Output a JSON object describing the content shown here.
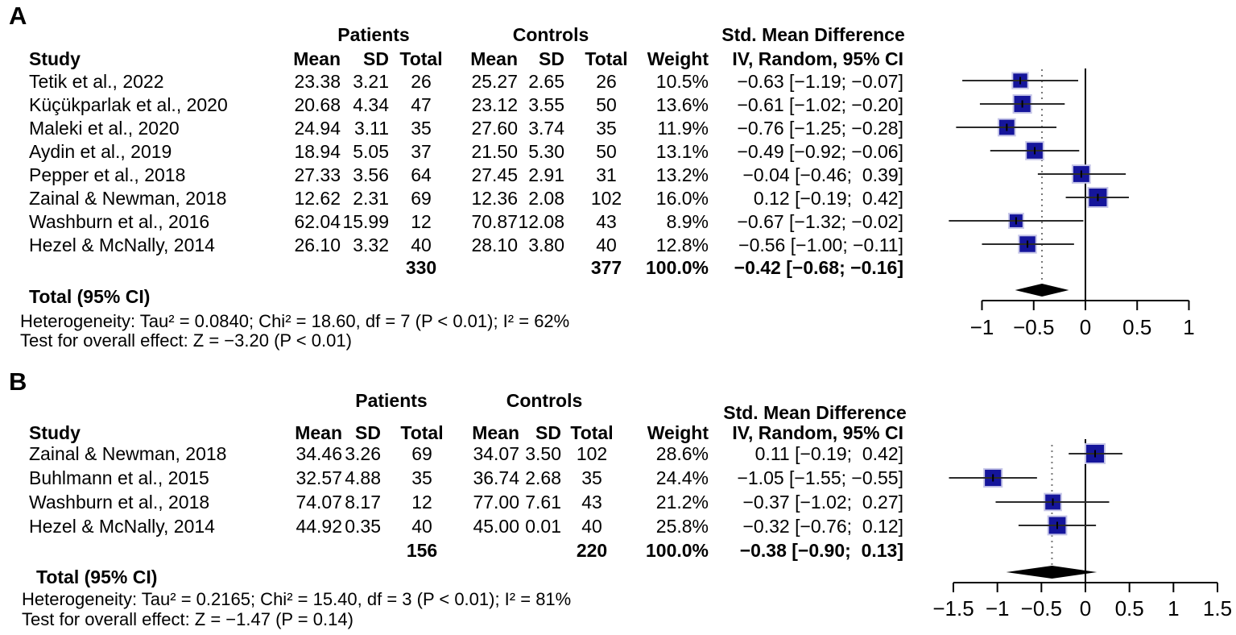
{
  "colors": {
    "background": "#ffffff",
    "text": "#000000",
    "marker_fill": "#15159b",
    "marker_stroke": "#c6c6e8",
    "ci_line": "#2b2b2b",
    "diamond": "#000000",
    "axis": "#000000",
    "pooled_dotted_line": "#777777"
  },
  "panels": [
    {
      "label": "A",
      "group_headers": {
        "patients": "Patients",
        "controls": "Controls",
        "smd": "Std. Mean Difference"
      },
      "column_headers": {
        "study": "Study",
        "mean": "Mean",
        "sd": "SD",
        "total": "Total",
        "weight": "Weight",
        "ci": "IV, Random, 95% CI"
      },
      "rows": [
        {
          "study": "Tetik et al., 2022",
          "p_mean": "23.38",
          "p_sd": "3.21",
          "p_total": "26",
          "c_mean": "25.27",
          "c_sd": "2.65",
          "c_total": "26",
          "weight": "10.5%",
          "smd": "−0.63 [−1.19; −0.07]"
        },
        {
          "study": "Küçükparlak et al., 2020",
          "p_mean": "20.68",
          "p_sd": "4.34",
          "p_total": "47",
          "c_mean": "23.12",
          "c_sd": "3.55",
          "c_total": "50",
          "weight": "13.6%",
          "smd": "−0.61 [−1.02; −0.20]"
        },
        {
          "study": "Maleki et al., 2020",
          "p_mean": "24.94",
          "p_sd": "3.11",
          "p_total": "35",
          "c_mean": "27.60",
          "c_sd": "3.74",
          "c_total": "35",
          "weight": "11.9%",
          "smd": "−0.76 [−1.25; −0.28]"
        },
        {
          "study": "Aydin et al., 2019",
          "p_mean": "18.94",
          "p_sd": "5.05",
          "p_total": "37",
          "c_mean": "21.50",
          "c_sd": "5.30",
          "c_total": "50",
          "weight": "13.1%",
          "smd": "−0.49 [−0.92; −0.06]"
        },
        {
          "study": "Pepper et al., 2018",
          "p_mean": "27.33",
          "p_sd": "3.56",
          "p_total": "64",
          "c_mean": "27.45",
          "c_sd": "2.91",
          "c_total": "31",
          "weight": "13.2%",
          "smd": "−0.04 [−0.46;  0.39]"
        },
        {
          "study": "Zainal & Newman, 2018",
          "p_mean": "12.62",
          "p_sd": "2.31",
          "p_total": "69",
          "c_mean": "12.36",
          "c_sd": "2.08",
          "c_total": "102",
          "weight": "16.0%",
          "smd": "0.12 [−0.19;  0.42]"
        },
        {
          "study": "Washburn et al., 2016",
          "p_mean": "62.04",
          "p_sd": "15.99",
          "p_total": "12",
          "c_mean": "70.87",
          "c_sd": "12.08",
          "c_total": "43",
          "weight": "8.9%",
          "smd": "−0.67 [−1.32; −0.02]"
        },
        {
          "study": "Hezel & McNally, 2014",
          "p_mean": "26.10",
          "p_sd": "3.32",
          "p_total": "40",
          "c_mean": "28.10",
          "c_sd": "3.80",
          "c_total": "40",
          "weight": "12.8%",
          "smd": "−0.56 [−1.00; −0.11]"
        }
      ],
      "totals": {
        "p_total": "330",
        "c_total": "377",
        "weight": "100.0%",
        "smd": "−0.42 [−0.68; −0.16]"
      },
      "total_label": "Total (95% CI)",
      "heterogeneity": "Heterogeneity: Tau² = 0.0840; Chi² = 18.60, df = 7 (P < 0.01); I² = 62%",
      "overall_test": "Test for overall effect: Z = −3.20 (P < 0.01)"
    },
    {
      "label": "B",
      "group_headers": {
        "patients": "Patients",
        "controls": "Controls",
        "smd": "Std. Mean Difference"
      },
      "column_headers": {
        "study": "Study",
        "mean": "Mean",
        "sd": "SD",
        "total": "Total",
        "weight": "Weight",
        "ci": "IV, Random, 95% CI"
      },
      "rows": [
        {
          "study": "Zainal & Newman, 2018",
          "p_mean": "34.46",
          "p_sd": "3.26",
          "p_total": "69",
          "c_mean": "34.07",
          "c_sd": "3.50",
          "c_total": "102",
          "weight": "28.6%",
          "smd": "0.11 [−0.19;  0.42]"
        },
        {
          "study": "Buhlmann et al., 2015",
          "p_mean": "32.57",
          "p_sd": "4.88",
          "p_total": "35",
          "c_mean": "36.74",
          "c_sd": "2.68",
          "c_total": "35",
          "weight": "24.4%",
          "smd": "−1.05 [−1.55; −0.55]"
        },
        {
          "study": "Washburn et al., 2018",
          "p_mean": "74.07",
          "p_sd": "8.17",
          "p_total": "12",
          "c_mean": "77.00",
          "c_sd": "7.61",
          "c_total": "43",
          "weight": "21.2%",
          "smd": "−0.37 [−1.02;  0.27]"
        },
        {
          "study": "Hezel & McNally, 2014",
          "p_mean": "44.92",
          "p_sd": "0.35",
          "p_total": "40",
          "c_mean": "45.00",
          "c_sd": "0.01",
          "c_total": "40",
          "weight": "25.8%",
          "smd": "−0.32 [−0.76;  0.12]"
        }
      ],
      "totals": {
        "p_total": "156",
        "c_total": "220",
        "weight": "100.0%",
        "smd": "−0.38 [−0.90;  0.13]"
      },
      "total_label": "Total (95% CI)",
      "heterogeneity": "Heterogeneity: Tau² = 0.2165; Chi² = 15.40, df = 3 (P < 0.01); I² = 81%",
      "overall_test": "Test for overall effect: Z = −1.47 (P = 0.14)"
    }
  ],
  "chart_data": [
    {
      "type": "scatter",
      "subtype": "forest-plot",
      "panel": "A",
      "effect_measure": "Std. Mean Difference (IV, Random, 95% CI)",
      "studies": [
        "Tetik et al., 2022",
        "Küçükparlak et al., 2020",
        "Maleki et al., 2020",
        "Aydin et al., 2019",
        "Pepper et al., 2018",
        "Zainal & Newman, 2018",
        "Washburn et al., 2016",
        "Hezel & McNally, 2014"
      ],
      "estimates": [
        -0.63,
        -0.61,
        -0.76,
        -0.49,
        -0.04,
        0.12,
        -0.67,
        -0.56
      ],
      "ci_low": [
        -1.19,
        -1.02,
        -1.25,
        -0.92,
        -0.46,
        -0.19,
        -1.32,
        -1.0
      ],
      "ci_high": [
        -0.07,
        -0.2,
        -0.28,
        -0.06,
        0.39,
        0.42,
        -0.02,
        -0.11
      ],
      "weights_pct": [
        10.5,
        13.6,
        11.9,
        13.1,
        13.2,
        16.0,
        8.9,
        12.8
      ],
      "pooled": {
        "estimate": -0.42,
        "ci_low": -0.68,
        "ci_high": -0.16,
        "weight_pct": 100.0
      },
      "reference_line": 0,
      "pooled_dotted_line": -0.42,
      "xlim": [
        -1,
        1
      ],
      "x_ticks": [
        -1,
        -0.5,
        0,
        0.5,
        1
      ],
      "x_tick_labels": [
        "−1",
        "−0.5",
        "0",
        "0.5",
        "1"
      ],
      "grid": false,
      "legend": false
    },
    {
      "type": "scatter",
      "subtype": "forest-plot",
      "panel": "B",
      "effect_measure": "Std. Mean Difference (IV, Random, 95% CI)",
      "studies": [
        "Zainal & Newman, 2018",
        "Buhlmann et al., 2015",
        "Washburn et al., 2018",
        "Hezel & McNally, 2014"
      ],
      "estimates": [
        0.11,
        -1.05,
        -0.37,
        -0.32
      ],
      "ci_low": [
        -0.19,
        -1.55,
        -1.02,
        -0.76
      ],
      "ci_high": [
        0.42,
        -0.55,
        0.27,
        0.12
      ],
      "weights_pct": [
        28.6,
        24.4,
        21.2,
        25.8
      ],
      "pooled": {
        "estimate": -0.38,
        "ci_low": -0.9,
        "ci_high": 0.13,
        "weight_pct": 100.0
      },
      "reference_line": 0,
      "pooled_dotted_line": -0.38,
      "xlim": [
        -1.5,
        1.5
      ],
      "x_ticks": [
        -1.5,
        -1,
        -0.5,
        0,
        0.5,
        1,
        1.5
      ],
      "x_tick_labels": [
        "−1.5",
        "−1",
        "−0.5",
        "0",
        "0.5",
        "1",
        "1.5"
      ],
      "grid": false,
      "legend": false
    }
  ]
}
